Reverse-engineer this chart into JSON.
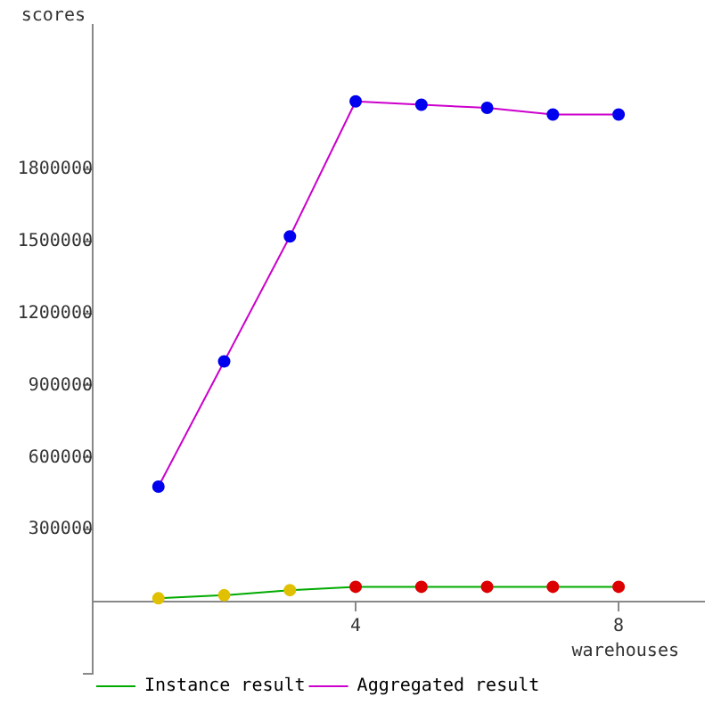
{
  "chart_data": {
    "type": "line",
    "xlabel": "warehouses",
    "ylabel": "scores",
    "x": [
      1,
      2,
      3,
      4,
      5,
      6,
      7,
      8
    ],
    "series": [
      {
        "name": "Instance result",
        "color": "#00aa00",
        "colors": [
          "#e0c000",
          "#e0c000",
          "#e0c000",
          "#dd0000",
          "#dd0000",
          "#dd0000",
          "#dd0000",
          "#dd0000"
        ],
        "values": [
          14000,
          27000,
          48000,
          62000,
          62000,
          62000,
          62000,
          62000
        ]
      },
      {
        "name": "Aggregated result",
        "color": "#cc00cc",
        "colors": [
          "#0000ee",
          "#0000ee",
          "#0000ee",
          "#0000ee",
          "#0000ee",
          "#0000ee",
          "#0000ee",
          "#0000ee"
        ],
        "values": [
          479000,
          1000000,
          1520000,
          2082000,
          2068000,
          2055000,
          2027000,
          2027000
        ]
      }
    ],
    "xlim": [
      0,
      9.3
    ],
    "xticks": [
      4,
      8
    ],
    "ylim": [
      -300000,
      2400000
    ],
    "yticks": [
      {
        "value": -300000,
        "label": null
      },
      300000,
      600000,
      900000,
      1200000,
      1500000,
      1800000
    ],
    "grid": false,
    "legend": "bottom left",
    "marker": "circle",
    "line_style": "solid"
  }
}
